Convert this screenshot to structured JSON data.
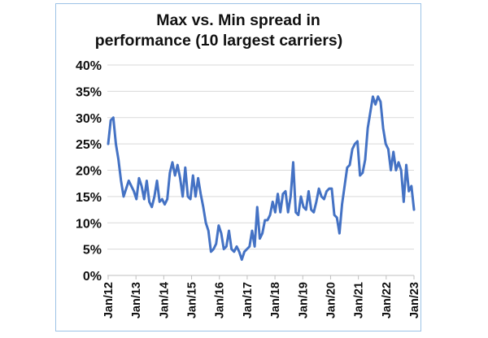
{
  "chart_data": {
    "type": "line",
    "title": "Max vs. Min spread in performance (10 largest carriers)",
    "title_lines": [
      "Max vs. Min spread in",
      "performance (10 largest carriers)"
    ],
    "xlabel": "",
    "ylabel": "",
    "ylim": [
      0,
      40
    ],
    "yticks": [
      0,
      5,
      10,
      15,
      20,
      25,
      30,
      35,
      40
    ],
    "ytick_labels": [
      "0%",
      "5%",
      "10%",
      "15%",
      "20%",
      "25%",
      "30%",
      "35%",
      "40%"
    ],
    "x_start": "Jan/12",
    "x_end": "Jan/23",
    "xtick_labels": [
      "Jan/12",
      "Jan/13",
      "Jan/14",
      "Jan/15",
      "Jan/16",
      "Jan/17",
      "Jan/18",
      "Jan/19",
      "Jan/20",
      "Jan/21",
      "Jan/22",
      "Jan/23"
    ],
    "grid": true,
    "legend": "none",
    "series": [
      {
        "name": "Max vs. Min spread",
        "color": "#4472c4",
        "values": [
          25,
          29.5,
          30,
          25,
          22,
          18,
          15,
          16.5,
          18,
          17,
          16,
          14.5,
          18.5,
          17,
          14.5,
          18,
          14,
          13,
          15,
          18,
          14,
          14.5,
          13.5,
          14.5,
          19.5,
          21.5,
          19,
          21,
          18.5,
          15,
          20.5,
          15,
          14.5,
          19,
          15,
          18.5,
          15.5,
          13,
          10,
          8.5,
          4.5,
          5,
          6,
          9.5,
          8,
          5,
          5.5,
          8.5,
          5,
          4.5,
          5.5,
          4.5,
          3,
          4.5,
          5,
          5.5,
          8.5,
          5.5,
          13,
          7,
          8,
          10.5,
          10.5,
          11.5,
          14,
          12,
          15.5,
          12,
          15.5,
          16,
          12,
          15,
          21.5,
          12,
          11.5,
          15,
          13,
          12.5,
          16,
          12.5,
          12,
          14,
          16.5,
          15,
          14.5,
          16,
          16.5,
          16.5,
          11.5,
          11,
          8,
          13.5,
          17,
          20.5,
          21,
          24,
          25,
          25.5,
          19,
          19.5,
          22,
          28,
          31,
          34,
          32.5,
          34,
          33,
          28,
          25,
          24,
          20,
          23.5,
          20,
          21.5,
          20,
          14,
          21,
          16,
          17,
          12.5
        ]
      }
    ]
  }
}
